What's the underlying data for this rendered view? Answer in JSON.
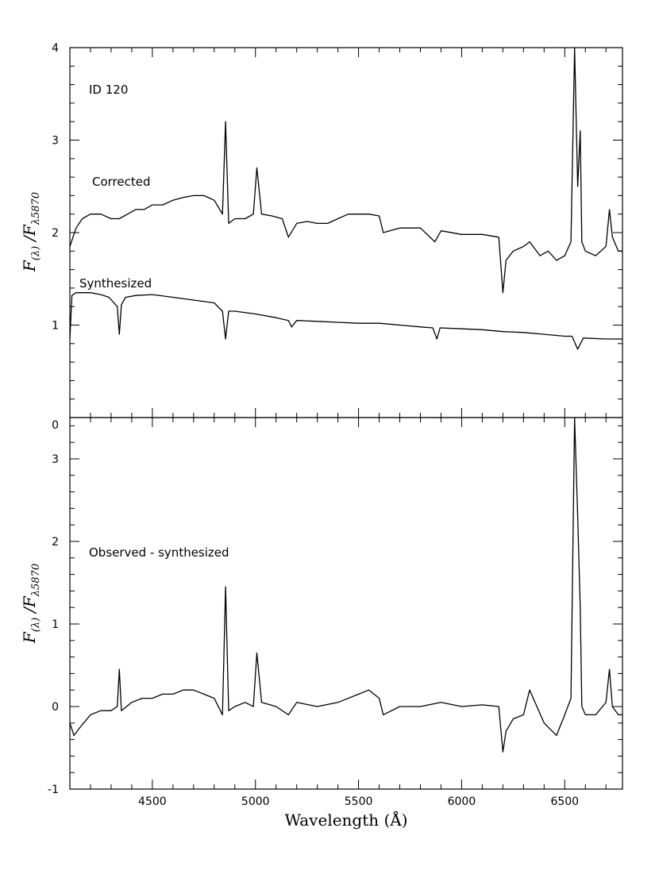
{
  "chart_data": [
    {
      "type": "line",
      "panel": "top",
      "xlim": [
        4100,
        6780
      ],
      "ylim": [
        0,
        4
      ],
      "yticks": [
        1,
        2,
        3,
        4
      ],
      "xticks": [
        4500,
        5000,
        5500,
        6000,
        6500
      ],
      "ylabel_main": "F",
      "ylabel_num_sub": "(λ)",
      "ylabel_sep": "/F",
      "ylabel_den_sub": "λ5870",
      "annotation": "ID 120",
      "series": [
        {
          "name": "Corrected",
          "x": [
            4100,
            4130,
            4160,
            4200,
            4250,
            4300,
            4340,
            4380,
            4420,
            4460,
            4500,
            4550,
            4600,
            4650,
            4700,
            4750,
            4800,
            4840,
            4855,
            4870,
            4900,
            4950,
            4990,
            5007,
            5030,
            5080,
            5130,
            5160,
            5200,
            5250,
            5300,
            5350,
            5400,
            5450,
            5500,
            5550,
            5600,
            5620,
            5700,
            5800,
            5870,
            5900,
            6000,
            6100,
            6180,
            6200,
            6215,
            6250,
            6300,
            6330,
            6380,
            6420,
            6460,
            6500,
            6530,
            6548,
            6563,
            6575,
            6583,
            6600,
            6650,
            6700,
            6717,
            6731,
            6760,
            6780
          ],
          "y": [
            1.85,
            2.05,
            2.15,
            2.2,
            2.2,
            2.15,
            2.15,
            2.2,
            2.25,
            2.25,
            2.3,
            2.3,
            2.35,
            2.38,
            2.4,
            2.4,
            2.35,
            2.2,
            3.2,
            2.1,
            2.15,
            2.15,
            2.2,
            2.7,
            2.2,
            2.18,
            2.15,
            1.95,
            2.1,
            2.12,
            2.1,
            2.1,
            2.15,
            2.2,
            2.2,
            2.2,
            2.18,
            2.0,
            2.05,
            2.05,
            1.9,
            2.02,
            1.98,
            1.98,
            1.95,
            1.35,
            1.7,
            1.8,
            1.85,
            1.9,
            1.75,
            1.8,
            1.7,
            1.75,
            1.9,
            4.0,
            2.5,
            3.1,
            1.9,
            1.8,
            1.75,
            1.85,
            2.25,
            1.95,
            1.8,
            1.8
          ]
        },
        {
          "name": "Synthesized",
          "x": [
            4100,
            4110,
            4130,
            4200,
            4250,
            4290,
            4310,
            4330,
            4340,
            4350,
            4370,
            4420,
            4500,
            4600,
            4700,
            4800,
            4840,
            4855,
            4870,
            4900,
            5000,
            5100,
            5160,
            5175,
            5200,
            5300,
            5400,
            5500,
            5600,
            5700,
            5800,
            5860,
            5880,
            5895,
            6000,
            6100,
            6200,
            6300,
            6400,
            6500,
            6535,
            6563,
            6590,
            6700,
            6780
          ],
          "y": [
            0.85,
            1.32,
            1.35,
            1.35,
            1.33,
            1.3,
            1.25,
            1.2,
            0.9,
            1.22,
            1.3,
            1.32,
            1.33,
            1.3,
            1.27,
            1.24,
            1.15,
            0.85,
            1.15,
            1.15,
            1.12,
            1.08,
            1.05,
            0.98,
            1.05,
            1.04,
            1.03,
            1.02,
            1.02,
            1.0,
            0.98,
            0.97,
            0.85,
            0.97,
            0.96,
            0.95,
            0.93,
            0.92,
            0.9,
            0.88,
            0.88,
            0.74,
            0.86,
            0.85,
            0.85
          ]
        }
      ]
    },
    {
      "type": "line",
      "panel": "bottom",
      "xlim": [
        4100,
        6780
      ],
      "ylim": [
        -1,
        3.5
      ],
      "yticks": [
        -1,
        0,
        1,
        2,
        3
      ],
      "extra_ytick_label": "0",
      "xticks": [
        4500,
        5000,
        5500,
        6000,
        6500
      ],
      "xlabel": "Wavelength (Å)",
      "ylabel_main": "F",
      "ylabel_num_sub": "(λ)",
      "ylabel_sep": "/F",
      "ylabel_den_sub": "λ5870",
      "series": [
        {
          "name": "Observed - synthesized",
          "x": [
            4100,
            4120,
            4150,
            4200,
            4250,
            4300,
            4330,
            4340,
            4350,
            4400,
            4450,
            4500,
            4550,
            4600,
            4650,
            4700,
            4750,
            4800,
            4840,
            4855,
            4870,
            4900,
            4950,
            4990,
            5007,
            5030,
            5100,
            5160,
            5200,
            5300,
            5400,
            5500,
            5550,
            5600,
            5620,
            5700,
            5800,
            5900,
            6000,
            6100,
            6180,
            6200,
            6215,
            6250,
            6300,
            6330,
            6400,
            6460,
            6500,
            6530,
            6548,
            6563,
            6575,
            6583,
            6600,
            6650,
            6700,
            6717,
            6731,
            6760,
            6780
          ],
          "y": [
            -0.2,
            -0.35,
            -0.25,
            -0.1,
            -0.05,
            -0.05,
            0.0,
            0.45,
            -0.05,
            0.05,
            0.1,
            0.1,
            0.15,
            0.15,
            0.2,
            0.2,
            0.15,
            0.1,
            -0.1,
            1.45,
            -0.05,
            0.0,
            0.05,
            0.0,
            0.65,
            0.05,
            0.0,
            -0.1,
            0.05,
            0.0,
            0.05,
            0.15,
            0.2,
            0.1,
            -0.1,
            0.0,
            0.0,
            0.05,
            0.0,
            0.02,
            0.0,
            -0.55,
            -0.3,
            -0.15,
            -0.1,
            0.2,
            -0.2,
            -0.35,
            -0.1,
            0.1,
            3.5,
            2.3,
            1.2,
            0.0,
            -0.1,
            -0.1,
            0.05,
            0.45,
            0.0,
            -0.1,
            -0.1
          ]
        }
      ]
    }
  ]
}
